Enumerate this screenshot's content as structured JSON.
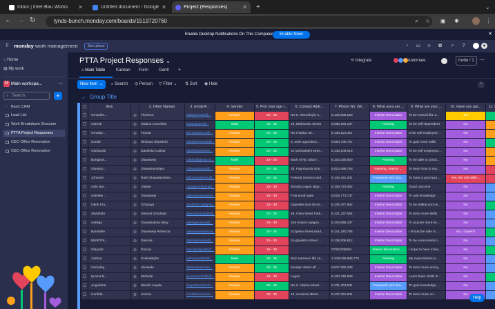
{
  "browser": {
    "tabs": [
      {
        "title": "Inbox | Inter-Bau Works",
        "color": "#ffffff",
        "active": false
      },
      {
        "title": "Untitled document - Google",
        "color": "#4285f4",
        "active": false
      },
      {
        "title": "Project (Responses)",
        "color": "#6161ff",
        "active": true
      }
    ],
    "url": "lynds-bunch.monday.com/boards/1519720760"
  },
  "notification": {
    "message": "Enable Desktop Notifications On This Computer",
    "button": "Enable Now!"
  },
  "app": {
    "logo_bold": "monday",
    "logo_rest": " work management",
    "plans": "See plans"
  },
  "sidebar": {
    "home": "Home",
    "my_work": "My work",
    "workspace": "Main workspa...",
    "search_placeholder": "Search",
    "boards": [
      "Basic CRM",
      "Lead List",
      "Work Breakdown Structure",
      "PTTA Project Responses",
      "CEO Office Renovation",
      "CEO Office Renovation"
    ]
  },
  "board": {
    "title": "PTTA Project Responses",
    "views": [
      "Main Table",
      "Kanban",
      "Form",
      "Gantt",
      "+"
    ],
    "integrate": "Integrate",
    "automate": "Automate",
    "invite": "Invite / 1",
    "toolbar": {
      "new_item": "New item",
      "search": "Search",
      "person": "Person",
      "filter": "Filter",
      "sort": "Sort",
      "hide": "Hide"
    },
    "group_title": "Group Title"
  },
  "table": {
    "headers": [
      "Item",
      "",
      "2. Other Names",
      "3. Email A...",
      "4. Gender",
      "5. Pick your age r...",
      "6. Contact Addr...",
      "7. Phone No. (W...",
      "8. What area are ...",
      "9. What are your ...",
      "10. Have you par...",
      "11. How did you ..."
    ],
    "colors": {
      "Female": "#ff9f1a",
      "Male": "#00c875",
      "20 - 25": "#00c875",
      "25 - 30": "#e2445c",
      "30 - 35": "#00c875",
      "35 - 40": "#00c875",
      "18 - 20": "#e2445c",
      "Yes": "#ffcb00",
      "No": "#a25ddc",
      "No, I haven't": "#a25ddc",
      "Yes, the soft skill i...": "#e2445c",
      "LinkedIn": "#00c875",
      "Whatsapp": "#ff9f1a",
      "Instagram": "#e2445c",
      "Facebook": "#579bfc",
      "Interior Decoration": "#a25ddc",
      "Painting": "#00c875",
      "Painting, Interior ...": "#e2445c",
      "Formwork and Sca...": "#579bfc",
      "Interior Decoration, ...": "#00c875"
    },
    "rows": [
      [
        "Omonike...",
        "Florence",
        "babyiamnola@...",
        "Female",
        "25 - 30",
        "No 5, Olorunloyin s...",
        "8,134,906,528",
        "Interior Decoration",
        "To be trained like a...",
        "Yes",
        "LinkedIn"
      ],
      [
        "Aderoti",
        "Olubori Cornelius",
        "kolapojuice@...",
        "Male",
        "30 - 35",
        "19, Mafowoku Street",
        "8,068,180,197",
        "Painting",
        "To be self-dependent",
        "No",
        "Whatsapp"
      ],
      [
        "Omotay...",
        "Favour",
        "ijemiwafavour@...",
        "Female",
        "20 - 25",
        "No 5 ladipo str...",
        "8,135,113,331",
        "Interior Decoration",
        "to be self employed ...",
        "No",
        "Whatsapp"
      ],
      [
        "Sonde",
        "Ifeoluwa Elizabeth",
        "elizabethsonde@...",
        "Female",
        "20 - 25",
        "6, wole ogundimu...",
        "8,064,700,767",
        "Interior Decoration",
        "To gain more skills",
        "No",
        "LinkedIn"
      ],
      [
        "Olufowobi",
        "Damilola Kudirat",
        "damilolaolufowo...",
        "Female",
        "20 - 25",
        "31 Moshalashi stree...",
        "8,138,108,616",
        "Interior Decoration",
        "To be self employed ...",
        "No",
        "Whatsapp"
      ],
      [
        "Bangbos...",
        "Oluwaseyi",
        "Olaiya@gmail.co...",
        "Male",
        "18 - 20",
        "Back of Ajo aduro ...",
        "8,101,030,920",
        "Painting",
        "To be able to practi...",
        "No",
        "Whatsapp"
      ],
      [
        "Oluwato...",
        "Oluwafunmilayo",
        "Oluwatofunmi@...",
        "Female",
        "20 - 25",
        "2b, Fapohunda clos...",
        "8,024,498,753",
        "Painting, Interior ...",
        "To learn how to ma...",
        "No",
        "Instagram"
      ],
      [
        "Johnson",
        "Ruth Oluwadamilola",
        "johnsonruthinfo@...",
        "Female",
        "20 - 25",
        "Federal Science and...",
        "9,130,451,301",
        "Formwork and Sca...",
        "To have a good pra...",
        "Yes, the soft skill i...",
        "Instagram"
      ],
      [
        "Adio Nur...",
        "Olaitan",
        "nuradeen@gmail...",
        "Female",
        "25 - 30",
        "Ikorodu Lagos Nige...",
        "8,106,723,062",
        "Painting",
        "Good outcome",
        "No",
        "Facebook"
      ],
      [
        "Adenike ...",
        "Oluwaseyi",
        "adenikeoluwaseyi...",
        "Female",
        "25 - 30",
        "Futa south gate",
        "9,025,773,737",
        "Interior Decoration",
        "To add knowledge",
        "No",
        "Facebook"
      ],
      [
        "Okoh Fra...",
        "Ochanya",
        "okohfranca@gma...",
        "Female",
        "25 - 30",
        "Opposite sure focus...",
        "8,106,767,962",
        "Interior Decoration",
        "To be skilled and ce...",
        "No",
        "LinkedIn"
      ],
      [
        "Abdullahi",
        "Afeezat Omolade",
        "afeezatomolade@...",
        "Female",
        "20 - 25",
        "49, Giwa street Fadi...",
        "8,121,237,554",
        "Interior Decoration",
        "To learn more skills",
        "No",
        "Facebook"
      ],
      [
        "Adelaja",
        "Oluwabukola Mary",
        "adelajabukola@...",
        "Female",
        "25 - 30",
        "2nd Avians Ayegun...",
        "8,100,688,337",
        "Interior Decoration",
        "To acquire more kn...",
        "No",
        "Facebook"
      ],
      [
        "Bamidele",
        "Oluwaseyi Rebecca",
        "oluwaseyirebecca...",
        "Female",
        "20 - 25",
        "3,Oyewo street,sand...",
        "8,141,240,766",
        "Interior Decoration",
        "I should be able to ...",
        "No, I haven't",
        "LinkedIn"
      ],
      [
        "MURITAL...",
        "Damola",
        "damolamurital@...",
        "Female",
        "25 - 30",
        "2A gbadebo street ...",
        "8,139,308,812",
        "Interior Decoration",
        "To be a successful i...",
        "No",
        "Facebook"
      ],
      [
        "Olayode",
        "Dorcas",
        "dorcasolayode@...",
        "Female",
        "25 - 30",
        "",
        "07083306884",
        "Interior Decoration, ...",
        "I hope to have more...",
        "No",
        "LinkedIn"
      ],
      [
        "Joshua",
        "Ezekiel0ghe",
        "joshuaezekiel@...",
        "Male",
        "30 - 35",
        "No2 ssereaco life ca...",
        "2,349,039,988,776",
        "Painting",
        "My expectations is ...",
        "No",
        "Facebook"
      ],
      [
        "Orimoloy...",
        "Abosede",
        "abosedeorimolo...",
        "Female",
        "30 - 35",
        "8,ladipo street off ...",
        "8,037,290,339",
        "Interior Decoration",
        "To learn more and g...",
        "No",
        "Facebook"
      ],
      [
        "Ijeoma N...",
        "Michelle",
        "ijeomamichelle@...",
        "Female",
        "25 - 30",
        "Lagos",
        "8,104,749,609",
        "Interior Decoration",
        "Learn basic Skills th...",
        "No",
        "LinkedIn"
      ],
      [
        "Augustina",
        "Nkechi Anyafu",
        "augustinankechi...",
        "Female",
        "35 - 40",
        "No 2, Adamu street...",
        "8,131,404,931",
        "Formwork and Sca...",
        "To gain knowledge ...",
        "No",
        "Facebook"
      ],
      [
        "Confide...",
        "Uzoma",
        "confidenceuzom...",
        "Female",
        "25 - 30",
        "12, sunsiere street ...",
        "8,137,331,531",
        "Interior Decoration",
        "To learn more on...",
        "No",
        "Facebook"
      ]
    ]
  },
  "help": "Help"
}
